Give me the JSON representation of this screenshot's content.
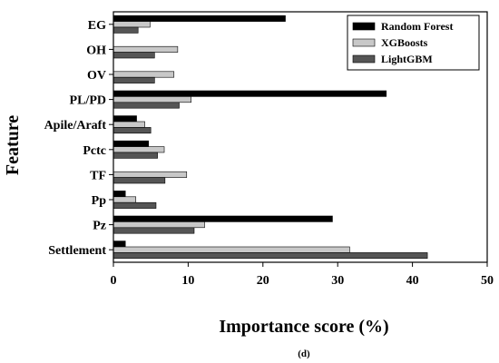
{
  "chart_data": {
    "type": "bar",
    "orientation": "horizontal",
    "categories": [
      "EG",
      "OH",
      "OV",
      "PL/PD",
      "Apile/Araft",
      "Pctc",
      "TF",
      "Pp",
      "Pz",
      "Settlement"
    ],
    "series": [
      {
        "name": "Random Forest",
        "color": "#000000",
        "values": [
          23.0,
          0,
          0,
          36.5,
          3.1,
          4.7,
          0,
          1.6,
          29.3,
          1.6
        ]
      },
      {
        "name": "XGBoosts",
        "color": "#c8c8c8",
        "values": [
          4.9,
          8.6,
          8.1,
          10.4,
          4.2,
          6.8,
          9.8,
          3.0,
          12.2,
          31.6
        ]
      },
      {
        "name": "LightGBM",
        "color": "#555555",
        "values": [
          3.3,
          5.5,
          5.5,
          8.8,
          5.0,
          5.9,
          6.9,
          5.7,
          10.8,
          42.0
        ]
      }
    ],
    "xlabel": "Importance score (%)",
    "ylabel": "Feature",
    "xlim": [
      0,
      50
    ],
    "xticks": [
      0,
      10,
      20,
      30,
      40,
      50
    ],
    "grid": false,
    "legend_position": "top-right"
  },
  "caption": "(d)"
}
